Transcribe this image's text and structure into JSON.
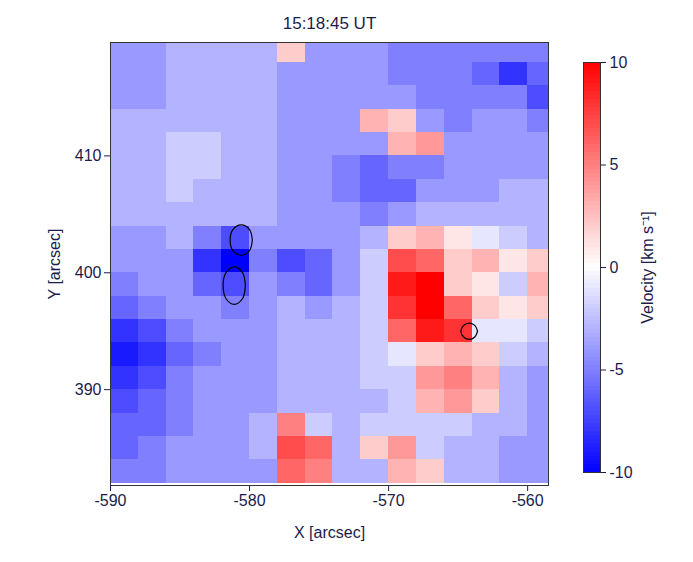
{
  "chart_data": {
    "type": "heatmap",
    "title": "15:18:45 UT",
    "x_label": "X [arcsec]",
    "y_label": "Y [arcsec]",
    "xlim": [
      -590,
      -558.5
    ],
    "ylim": [
      381.8,
      419.7
    ],
    "xticks": [
      -590,
      -580,
      -570,
      -560
    ],
    "yticks": [
      390,
      400,
      410
    ],
    "x": [
      -589,
      -587,
      -585,
      -583,
      -581,
      -579,
      -577,
      -575,
      -573,
      -571,
      -569,
      -567,
      -565,
      -563,
      -561,
      -559
    ],
    "y": [
      383,
      385,
      387,
      389,
      391,
      393,
      395,
      397,
      399,
      401,
      403,
      405,
      407,
      409,
      411,
      413,
      415,
      417,
      419
    ],
    "values": [
      [
        -5,
        -5,
        -4,
        -4,
        -4,
        -4,
        6,
        5,
        -3,
        -3,
        3,
        2,
        -3,
        -3,
        -4,
        -4
      ],
      [
        -6,
        -5,
        -4,
        -4,
        -4,
        -3,
        7,
        6,
        -3,
        2,
        4,
        -2,
        -3,
        -3,
        -4,
        -4
      ],
      [
        -6,
        -6,
        -5,
        -4,
        -4,
        -3,
        5,
        -2,
        -3,
        -2,
        -2,
        -2,
        -2,
        -3,
        -3,
        -4
      ],
      [
        -7,
        -6,
        -5,
        -4,
        -4,
        -4,
        -3,
        -3,
        -3,
        -3,
        -2,
        3,
        4,
        2,
        -3,
        -4
      ],
      [
        -8,
        -7,
        -5,
        -4,
        -4,
        -4,
        -3,
        -3,
        -3,
        -2,
        -2,
        4,
        5,
        3,
        -3,
        -4
      ],
      [
        -9,
        -8,
        -6,
        -5,
        -4,
        -4,
        -3,
        -3,
        -3,
        -2,
        -1,
        2,
        3,
        2,
        -2,
        -3
      ],
      [
        -8,
        -7,
        -5,
        -4,
        -4,
        -4,
        -3,
        -3,
        -3,
        -2,
        6,
        9,
        8,
        -1,
        -1,
        -2
      ],
      [
        -6,
        -5,
        -4,
        -4,
        -5,
        -4,
        -3,
        -4,
        -3,
        -2,
        8,
        10,
        6,
        2,
        1,
        2
      ],
      [
        -5,
        -4,
        -4,
        -6,
        -7,
        -4,
        -5,
        -6,
        -4,
        -2,
        9,
        10,
        2,
        1,
        -2,
        3
      ],
      [
        -4,
        -4,
        -4,
        -8,
        -10,
        -5,
        -7,
        -6,
        -4,
        -2,
        7,
        6,
        2,
        3,
        1,
        2
      ],
      [
        -4,
        -4,
        -3,
        -5,
        -7,
        -4,
        -4,
        -4,
        -4,
        -3,
        2,
        3,
        1,
        -1,
        -2,
        -3
      ],
      [
        -3,
        -3,
        -3,
        -3,
        -3,
        -3,
        -4,
        -4,
        -4,
        -5,
        -4,
        -3,
        -3,
        -3,
        -3,
        -3
      ],
      [
        -3,
        -3,
        -2,
        -3,
        -3,
        -3,
        -4,
        -4,
        -5,
        -6,
        -6,
        -4,
        -4,
        -4,
        -3,
        -3
      ],
      [
        -3,
        -3,
        -2,
        -2,
        -3,
        -3,
        -4,
        -4,
        -5,
        -6,
        -5,
        -5,
        -4,
        -4,
        -4,
        -4
      ],
      [
        -3,
        -3,
        -2,
        -2,
        -3,
        -3,
        -4,
        -4,
        -4,
        -4,
        3,
        4,
        -4,
        -4,
        -4,
        -4
      ],
      [
        -3,
        -3,
        -3,
        -3,
        -3,
        -3,
        -4,
        -4,
        -4,
        3,
        2,
        -4,
        -5,
        -4,
        -4,
        -5
      ],
      [
        -4,
        -4,
        -3,
        -3,
        -3,
        -3,
        -4,
        -4,
        -4,
        -4,
        -4,
        -5,
        -5,
        -5,
        -5,
        -7
      ],
      [
        -4,
        -4,
        -3,
        -3,
        -3,
        -3,
        -4,
        -4,
        -4,
        -4,
        -5,
        -5,
        -5,
        -6,
        -8,
        -6
      ],
      [
        -4,
        -4,
        -3,
        -3,
        -3,
        -3,
        2,
        -4,
        -4,
        -4,
        -5,
        -5,
        -5,
        -5,
        -5,
        -5
      ]
    ],
    "contours": [
      {
        "x": [
          -579.8,
          -580.0,
          -580.6,
          -581.2,
          -581.4,
          -581.2,
          -580.6,
          -580.0,
          -579.8
        ],
        "y": [
          402.8,
          403.7,
          404.1,
          403.7,
          402.8,
          401.9,
          401.5,
          401.9,
          402.8
        ]
      },
      {
        "x": [
          -580.3,
          -580.5,
          -581.1,
          -581.7,
          -581.9,
          -581.7,
          -581.1,
          -580.5,
          -580.3
        ],
        "y": [
          398.9,
          400.0,
          400.5,
          400.0,
          398.9,
          397.8,
          397.3,
          397.8,
          398.9
        ]
      },
      {
        "x": [
          -563.6,
          -563.8,
          -564.2,
          -564.6,
          -564.8,
          -564.6,
          -564.2,
          -563.8,
          -563.6
        ],
        "y": [
          395.0,
          395.5,
          395.7,
          395.5,
          395.0,
          394.5,
          394.3,
          394.5,
          395.0
        ]
      }
    ],
    "colorbar": {
      "label": "Velocity [km s⁻¹]",
      "range": [
        -10,
        10
      ],
      "ticks": [
        -10,
        -5,
        0,
        5,
        10
      ]
    }
  }
}
